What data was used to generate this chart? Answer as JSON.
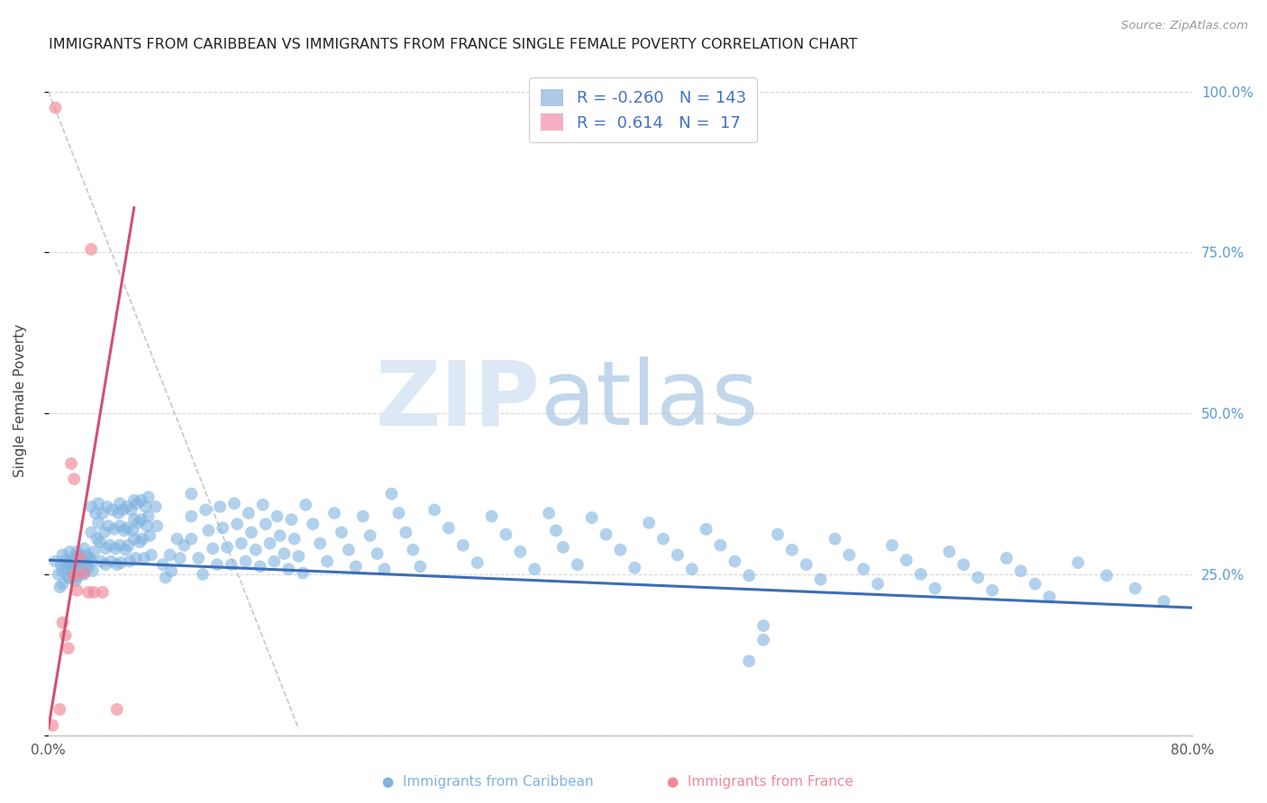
{
  "title": "IMMIGRANTS FROM CARIBBEAN VS IMMIGRANTS FROM FRANCE SINGLE FEMALE POVERTY CORRELATION CHART",
  "source": "Source: ZipAtlas.com",
  "ylabel": "Single Female Poverty",
  "xlim": [
    0.0,
    0.8
  ],
  "ylim": [
    0.0,
    1.04
  ],
  "caribbean_color": "#7fb3e0",
  "france_color": "#f08898",
  "caribbean_line_color": "#3c6eb4",
  "france_line_color": "#d45070",
  "background_color": "#ffffff",
  "grid_color": "#d8d8d8",
  "caribbean_line_x": [
    0.0,
    0.8
  ],
  "caribbean_line_y": [
    0.272,
    0.198
  ],
  "france_line_x": [
    0.0,
    0.06
  ],
  "france_line_y": [
    0.01,
    0.82
  ],
  "dashed_line_x": [
    0.0,
    0.175
  ],
  "dashed_line_y": [
    1.0,
    0.01
  ],
  "caribbean_dots": [
    [
      0.005,
      0.27
    ],
    [
      0.007,
      0.25
    ],
    [
      0.008,
      0.23
    ],
    [
      0.009,
      0.265
    ],
    [
      0.01,
      0.28
    ],
    [
      0.01,
      0.255
    ],
    [
      0.01,
      0.235
    ],
    [
      0.012,
      0.272
    ],
    [
      0.013,
      0.26
    ],
    [
      0.014,
      0.245
    ],
    [
      0.015,
      0.285
    ],
    [
      0.015,
      0.265
    ],
    [
      0.015,
      0.245
    ],
    [
      0.016,
      0.27
    ],
    [
      0.017,
      0.255
    ],
    [
      0.018,
      0.275
    ],
    [
      0.018,
      0.26
    ],
    [
      0.019,
      0.24
    ],
    [
      0.02,
      0.285
    ],
    [
      0.02,
      0.265
    ],
    [
      0.02,
      0.245
    ],
    [
      0.021,
      0.28
    ],
    [
      0.022,
      0.27
    ],
    [
      0.023,
      0.255
    ],
    [
      0.024,
      0.275
    ],
    [
      0.025,
      0.29
    ],
    [
      0.025,
      0.27
    ],
    [
      0.025,
      0.25
    ],
    [
      0.026,
      0.265
    ],
    [
      0.027,
      0.28
    ],
    [
      0.028,
      0.26
    ],
    [
      0.029,
      0.275
    ],
    [
      0.03,
      0.355
    ],
    [
      0.03,
      0.315
    ],
    [
      0.03,
      0.27
    ],
    [
      0.031,
      0.255
    ],
    [
      0.032,
      0.285
    ],
    [
      0.033,
      0.345
    ],
    [
      0.034,
      0.305
    ],
    [
      0.035,
      0.36
    ],
    [
      0.035,
      0.33
    ],
    [
      0.036,
      0.3
    ],
    [
      0.037,
      0.27
    ],
    [
      0.038,
      0.345
    ],
    [
      0.039,
      0.315
    ],
    [
      0.04,
      0.29
    ],
    [
      0.04,
      0.265
    ],
    [
      0.041,
      0.355
    ],
    [
      0.042,
      0.325
    ],
    [
      0.043,
      0.295
    ],
    [
      0.044,
      0.27
    ],
    [
      0.045,
      0.35
    ],
    [
      0.046,
      0.32
    ],
    [
      0.047,
      0.29
    ],
    [
      0.048,
      0.265
    ],
    [
      0.049,
      0.345
    ],
    [
      0.05,
      0.36
    ],
    [
      0.05,
      0.325
    ],
    [
      0.05,
      0.295
    ],
    [
      0.051,
      0.268
    ],
    [
      0.052,
      0.35
    ],
    [
      0.053,
      0.318
    ],
    [
      0.054,
      0.288
    ],
    [
      0.055,
      0.355
    ],
    [
      0.055,
      0.322
    ],
    [
      0.056,
      0.295
    ],
    [
      0.057,
      0.27
    ],
    [
      0.058,
      0.35
    ],
    [
      0.059,
      0.318
    ],
    [
      0.06,
      0.365
    ],
    [
      0.06,
      0.335
    ],
    [
      0.06,
      0.305
    ],
    [
      0.061,
      0.275
    ],
    [
      0.062,
      0.36
    ],
    [
      0.063,
      0.33
    ],
    [
      0.064,
      0.3
    ],
    [
      0.065,
      0.365
    ],
    [
      0.065,
      0.335
    ],
    [
      0.066,
      0.305
    ],
    [
      0.067,
      0.275
    ],
    [
      0.068,
      0.355
    ],
    [
      0.069,
      0.325
    ],
    [
      0.07,
      0.37
    ],
    [
      0.07,
      0.34
    ],
    [
      0.071,
      0.31
    ],
    [
      0.072,
      0.28
    ],
    [
      0.075,
      0.355
    ],
    [
      0.076,
      0.325
    ],
    [
      0.08,
      0.265
    ],
    [
      0.082,
      0.245
    ],
    [
      0.085,
      0.28
    ],
    [
      0.086,
      0.255
    ],
    [
      0.09,
      0.305
    ],
    [
      0.092,
      0.275
    ],
    [
      0.095,
      0.295
    ],
    [
      0.1,
      0.375
    ],
    [
      0.1,
      0.34
    ],
    [
      0.1,
      0.305
    ],
    [
      0.105,
      0.275
    ],
    [
      0.108,
      0.25
    ],
    [
      0.11,
      0.35
    ],
    [
      0.112,
      0.318
    ],
    [
      0.115,
      0.29
    ],
    [
      0.118,
      0.265
    ],
    [
      0.12,
      0.355
    ],
    [
      0.122,
      0.322
    ],
    [
      0.125,
      0.292
    ],
    [
      0.128,
      0.265
    ],
    [
      0.13,
      0.36
    ],
    [
      0.132,
      0.328
    ],
    [
      0.135,
      0.298
    ],
    [
      0.138,
      0.27
    ],
    [
      0.14,
      0.345
    ],
    [
      0.142,
      0.315
    ],
    [
      0.145,
      0.288
    ],
    [
      0.148,
      0.262
    ],
    [
      0.15,
      0.358
    ],
    [
      0.152,
      0.328
    ],
    [
      0.155,
      0.298
    ],
    [
      0.158,
      0.27
    ],
    [
      0.16,
      0.34
    ],
    [
      0.162,
      0.31
    ],
    [
      0.165,
      0.282
    ],
    [
      0.168,
      0.258
    ],
    [
      0.17,
      0.335
    ],
    [
      0.172,
      0.305
    ],
    [
      0.175,
      0.278
    ],
    [
      0.178,
      0.252
    ],
    [
      0.18,
      0.358
    ],
    [
      0.185,
      0.328
    ],
    [
      0.19,
      0.298
    ],
    [
      0.195,
      0.27
    ],
    [
      0.2,
      0.345
    ],
    [
      0.205,
      0.315
    ],
    [
      0.21,
      0.288
    ],
    [
      0.215,
      0.262
    ],
    [
      0.22,
      0.34
    ],
    [
      0.225,
      0.31
    ],
    [
      0.23,
      0.282
    ],
    [
      0.235,
      0.258
    ],
    [
      0.24,
      0.375
    ],
    [
      0.245,
      0.345
    ],
    [
      0.25,
      0.315
    ],
    [
      0.255,
      0.288
    ],
    [
      0.26,
      0.262
    ],
    [
      0.27,
      0.35
    ],
    [
      0.28,
      0.322
    ],
    [
      0.29,
      0.295
    ],
    [
      0.3,
      0.268
    ],
    [
      0.31,
      0.34
    ],
    [
      0.32,
      0.312
    ],
    [
      0.33,
      0.285
    ],
    [
      0.34,
      0.258
    ],
    [
      0.35,
      0.345
    ],
    [
      0.355,
      0.318
    ],
    [
      0.36,
      0.292
    ],
    [
      0.37,
      0.265
    ],
    [
      0.38,
      0.338
    ],
    [
      0.39,
      0.312
    ],
    [
      0.4,
      0.288
    ],
    [
      0.41,
      0.26
    ],
    [
      0.42,
      0.33
    ],
    [
      0.43,
      0.305
    ],
    [
      0.44,
      0.28
    ],
    [
      0.45,
      0.258
    ],
    [
      0.46,
      0.32
    ],
    [
      0.47,
      0.295
    ],
    [
      0.48,
      0.27
    ],
    [
      0.49,
      0.248
    ],
    [
      0.49,
      0.115
    ],
    [
      0.5,
      0.17
    ],
    [
      0.5,
      0.148
    ],
    [
      0.51,
      0.312
    ],
    [
      0.52,
      0.288
    ],
    [
      0.53,
      0.265
    ],
    [
      0.54,
      0.242
    ],
    [
      0.55,
      0.305
    ],
    [
      0.56,
      0.28
    ],
    [
      0.57,
      0.258
    ],
    [
      0.58,
      0.235
    ],
    [
      0.59,
      0.295
    ],
    [
      0.6,
      0.272
    ],
    [
      0.61,
      0.25
    ],
    [
      0.62,
      0.228
    ],
    [
      0.63,
      0.285
    ],
    [
      0.64,
      0.265
    ],
    [
      0.65,
      0.245
    ],
    [
      0.66,
      0.225
    ],
    [
      0.67,
      0.275
    ],
    [
      0.68,
      0.255
    ],
    [
      0.69,
      0.235
    ],
    [
      0.7,
      0.215
    ],
    [
      0.72,
      0.268
    ],
    [
      0.74,
      0.248
    ],
    [
      0.76,
      0.228
    ],
    [
      0.78,
      0.208
    ]
  ],
  "france_dots": [
    [
      0.003,
      0.015
    ],
    [
      0.005,
      0.975
    ],
    [
      0.008,
      0.04
    ],
    [
      0.01,
      0.175
    ],
    [
      0.012,
      0.155
    ],
    [
      0.014,
      0.135
    ],
    [
      0.016,
      0.422
    ],
    [
      0.018,
      0.398
    ],
    [
      0.018,
      0.248
    ],
    [
      0.02,
      0.225
    ],
    [
      0.022,
      0.275
    ],
    [
      0.025,
      0.252
    ],
    [
      0.028,
      0.222
    ],
    [
      0.03,
      0.755
    ],
    [
      0.032,
      0.222
    ],
    [
      0.038,
      0.222
    ],
    [
      0.048,
      0.04
    ]
  ]
}
